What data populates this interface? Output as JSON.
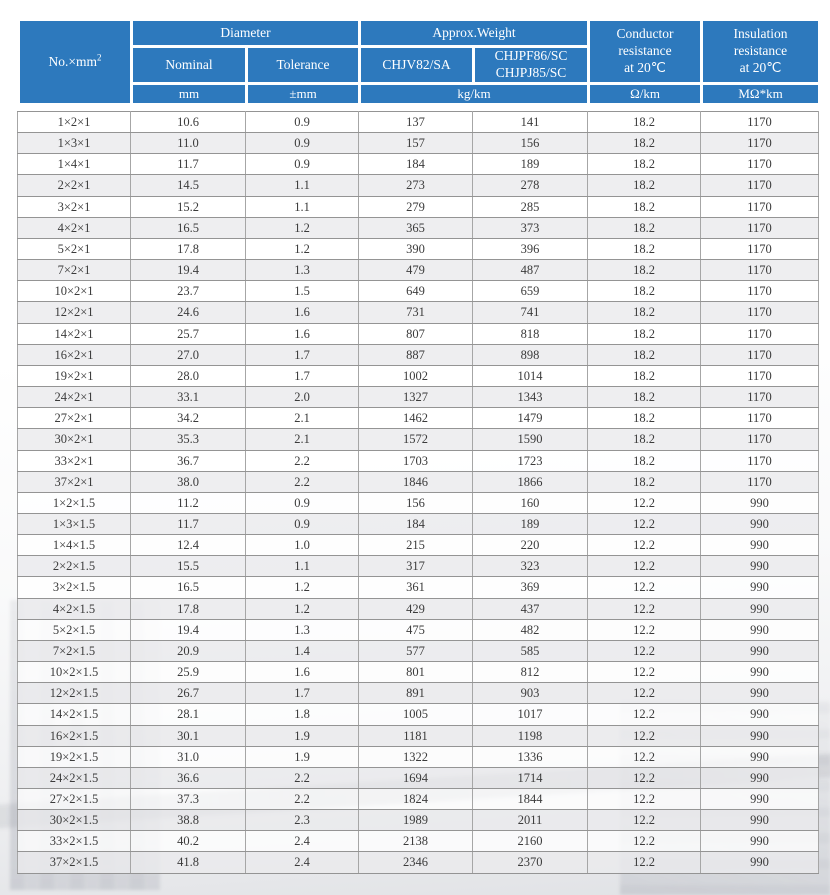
{
  "colors": {
    "header_blue": "#2d79bd",
    "row_alt": "rgba(234,234,237,0.82)",
    "grid_line": "#949494",
    "header_text": "#ffffff",
    "body_text": "#3b3b3b"
  },
  "table": {
    "header": {
      "col_no_base": "No.×mm",
      "col_no_sup": "2",
      "diameter": "Diameter",
      "approx_weight": "Approx.Weight",
      "nominal": "Nominal",
      "tolerance": "Tolerance",
      "chjv": "CHJV82/SA",
      "chjpf": "CHJPF86/SC\nCHJPJ85/SC",
      "conductor": "Conductor\nresistance\nat 20℃",
      "insulation": "Insulation\nresistance\nat 20℃",
      "unit_mm": "mm",
      "unit_tolerance": "±mm",
      "unit_weight": "kg/km",
      "unit_conductor": "Ω/km",
      "unit_insulation": "MΩ*km"
    },
    "column_names": [
      "cell-spec",
      "cell-nominal",
      "cell-tolerance",
      "cell-weight-chjv82",
      "cell-weight-chjpf86",
      "cell-conductor-resistance",
      "cell-insulation-resistance"
    ],
    "rows": [
      [
        "1×2×1",
        "10.6",
        "0.9",
        "137",
        "141",
        "18.2",
        "1170"
      ],
      [
        "1×3×1",
        "11.0",
        "0.9",
        "157",
        "156",
        "18.2",
        "1170"
      ],
      [
        "1×4×1",
        "11.7",
        "0.9",
        "184",
        "189",
        "18.2",
        "1170"
      ],
      [
        "2×2×1",
        "14.5",
        "1.1",
        "273",
        "278",
        "18.2",
        "1170"
      ],
      [
        "3×2×1",
        "15.2",
        "1.1",
        "279",
        "285",
        "18.2",
        "1170"
      ],
      [
        "4×2×1",
        "16.5",
        "1.2",
        "365",
        "373",
        "18.2",
        "1170"
      ],
      [
        "5×2×1",
        "17.8",
        "1.2",
        "390",
        "396",
        "18.2",
        "1170"
      ],
      [
        "7×2×1",
        "19.4",
        "1.3",
        "479",
        "487",
        "18.2",
        "1170"
      ],
      [
        "10×2×1",
        "23.7",
        "1.5",
        "649",
        "659",
        "18.2",
        "1170"
      ],
      [
        "12×2×1",
        "24.6",
        "1.6",
        "731",
        "741",
        "18.2",
        "1170"
      ],
      [
        "14×2×1",
        "25.7",
        "1.6",
        "807",
        "818",
        "18.2",
        "1170"
      ],
      [
        "16×2×1",
        "27.0",
        "1.7",
        "887",
        "898",
        "18.2",
        "1170"
      ],
      [
        "19×2×1",
        "28.0",
        "1.7",
        "1002",
        "1014",
        "18.2",
        "1170"
      ],
      [
        "24×2×1",
        "33.1",
        "2.0",
        "1327",
        "1343",
        "18.2",
        "1170"
      ],
      [
        "27×2×1",
        "34.2",
        "2.1",
        "1462",
        "1479",
        "18.2",
        "1170"
      ],
      [
        "30×2×1",
        "35.3",
        "2.1",
        "1572",
        "1590",
        "18.2",
        "1170"
      ],
      [
        "33×2×1",
        "36.7",
        "2.2",
        "1703",
        "1723",
        "18.2",
        "1170"
      ],
      [
        "37×2×1",
        "38.0",
        "2.2",
        "1846",
        "1866",
        "18.2",
        "1170"
      ],
      [
        "1×2×1.5",
        "11.2",
        "0.9",
        "156",
        "160",
        "12.2",
        "990"
      ],
      [
        "1×3×1.5",
        "11.7",
        "0.9",
        "184",
        "189",
        "12.2",
        "990"
      ],
      [
        "1×4×1.5",
        "12.4",
        "1.0",
        "215",
        "220",
        "12.2",
        "990"
      ],
      [
        "2×2×1.5",
        "15.5",
        "1.1",
        "317",
        "323",
        "12.2",
        "990"
      ],
      [
        "3×2×1.5",
        "16.5",
        "1.2",
        "361",
        "369",
        "12.2",
        "990"
      ],
      [
        "4×2×1.5",
        "17.8",
        "1.2",
        "429",
        "437",
        "12.2",
        "990"
      ],
      [
        "5×2×1.5",
        "19.4",
        "1.3",
        "475",
        "482",
        "12.2",
        "990"
      ],
      [
        "7×2×1.5",
        "20.9",
        "1.4",
        "577",
        "585",
        "12.2",
        "990"
      ],
      [
        "10×2×1.5",
        "25.9",
        "1.6",
        "801",
        "812",
        "12.2",
        "990"
      ],
      [
        "12×2×1.5",
        "26.7",
        "1.7",
        "891",
        "903",
        "12.2",
        "990"
      ],
      [
        "14×2×1.5",
        "28.1",
        "1.8",
        "1005",
        "1017",
        "12.2",
        "990"
      ],
      [
        "16×2×1.5",
        "30.1",
        "1.9",
        "1181",
        "1198",
        "12.2",
        "990"
      ],
      [
        "19×2×1.5",
        "31.0",
        "1.9",
        "1322",
        "1336",
        "12.2",
        "990"
      ],
      [
        "24×2×1.5",
        "36.6",
        "2.2",
        "1694",
        "1714",
        "12.2",
        "990"
      ],
      [
        "27×2×1.5",
        "37.3",
        "2.2",
        "1824",
        "1844",
        "12.2",
        "990"
      ],
      [
        "30×2×1.5",
        "38.8",
        "2.3",
        "1989",
        "2011",
        "12.2",
        "990"
      ],
      [
        "33×2×1.5",
        "40.2",
        "2.4",
        "2138",
        "2160",
        "12.2",
        "990"
      ],
      [
        "37×2×1.5",
        "41.8",
        "2.4",
        "2346",
        "2370",
        "12.2",
        "990"
      ]
    ]
  }
}
